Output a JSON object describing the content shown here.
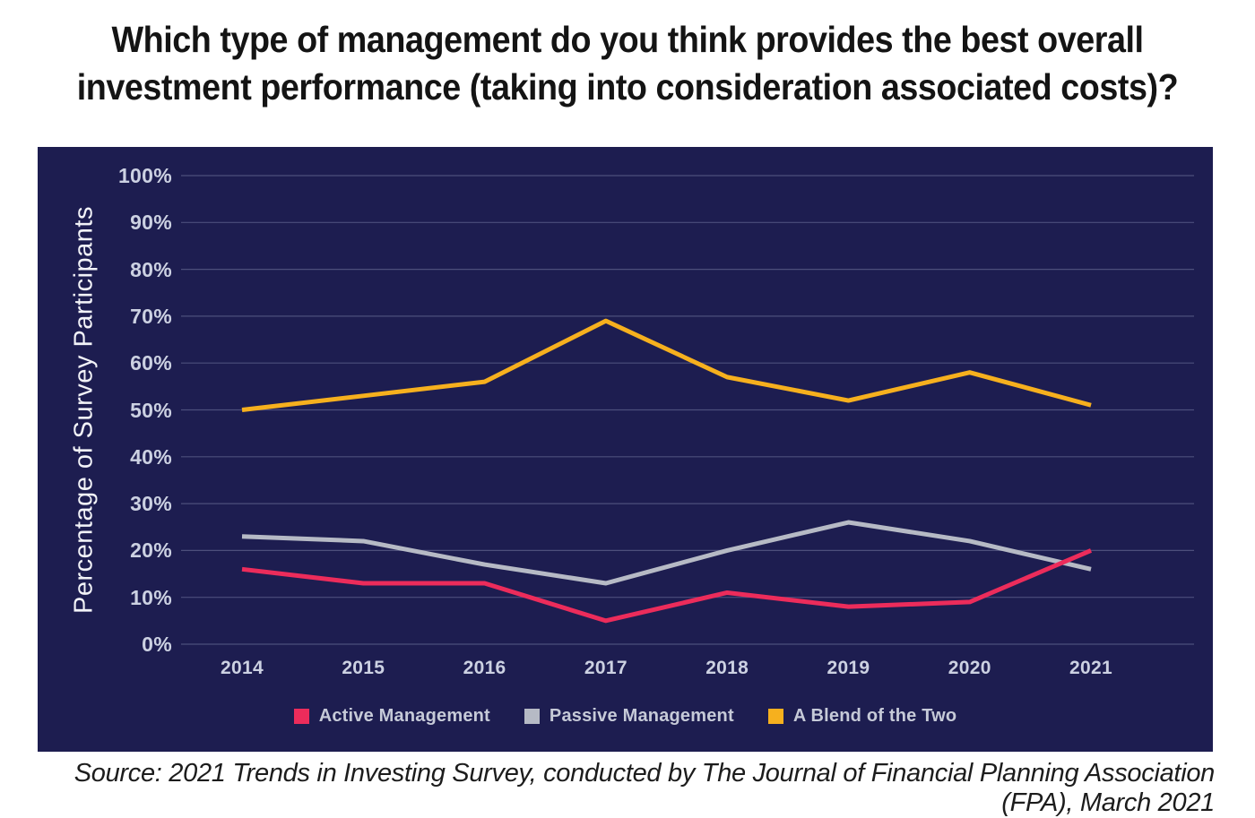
{
  "title_lines": [
    "Which type of management do you think provides the best overall",
    "investment performance (taking into consideration associated costs)?"
  ],
  "source_note": "Source: 2021 Trends in Investing Survey, conducted by The Journal of Financial Planning Association (FPA), March 2021",
  "chart_data": {
    "type": "line",
    "title": "Which type of management do you think provides the best overall investment performance (taking into consideration associated costs)?",
    "ylabel": "Percentage of Survey Participants",
    "xlabel": "",
    "categories": [
      "2014",
      "2015",
      "2016",
      "2017",
      "2018",
      "2019",
      "2020",
      "2021"
    ],
    "series": [
      {
        "name": "Active Management",
        "color": "#ec2c5b",
        "values": [
          16,
          13,
          13,
          5,
          11,
          8,
          9,
          20
        ]
      },
      {
        "name": "Passive Management",
        "color": "#b6bac5",
        "values": [
          23,
          22,
          17,
          13,
          20,
          26,
          22,
          16
        ]
      },
      {
        "name": "A Blend of the Two",
        "color": "#f6b01e",
        "values": [
          50,
          53,
          56,
          69,
          57,
          52,
          58,
          51
        ]
      }
    ],
    "ylim": [
      0,
      100
    ],
    "ytick_step": 10,
    "ytick_labels": [
      "0%",
      "10%",
      "20%",
      "30%",
      "40%",
      "50%",
      "60%",
      "70%",
      "80%",
      "90%",
      "100%"
    ],
    "grid": true,
    "legend_position": "bottom",
    "panel_background": "#1d1d50",
    "gridline_color": "rgba(190,196,226,0.30)"
  }
}
